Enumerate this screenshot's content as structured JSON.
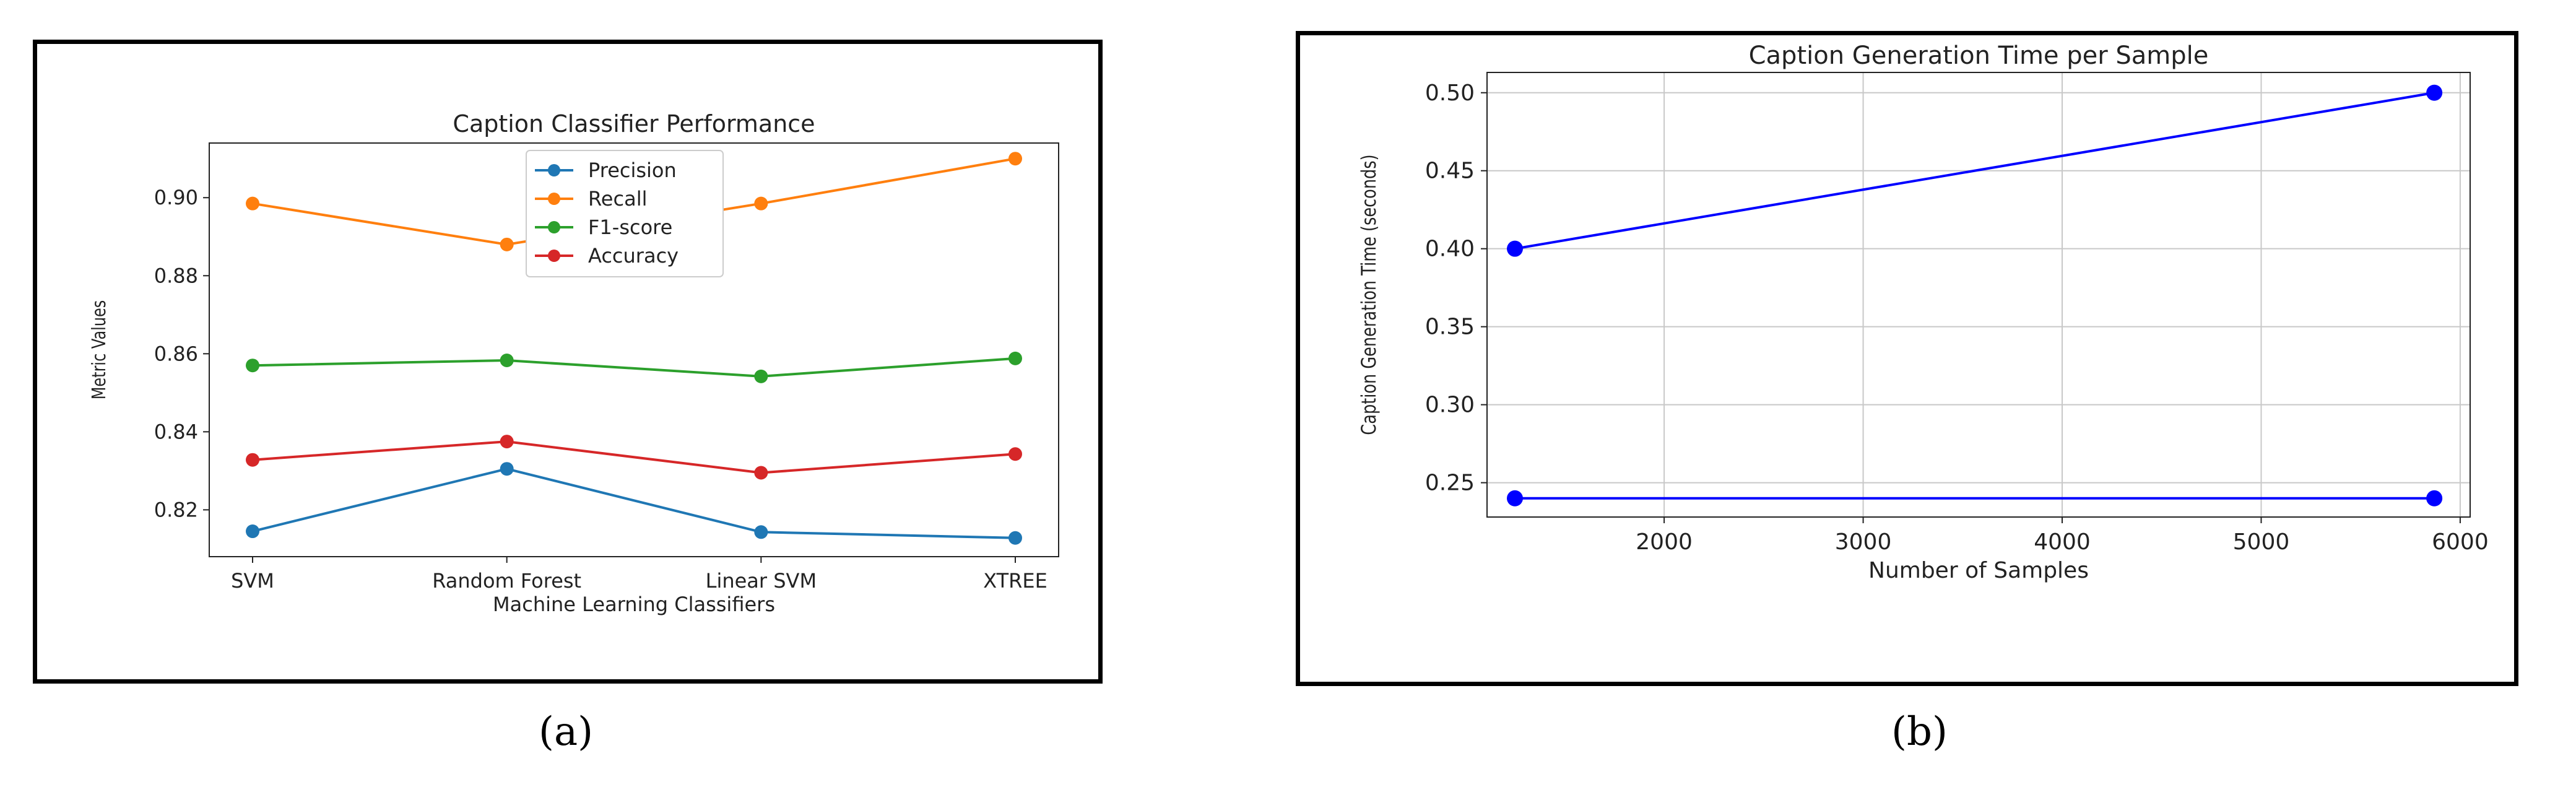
{
  "figure": {
    "label_a": "(a)",
    "label_b": "(b)"
  },
  "chart_data": [
    {
      "type": "line",
      "title": "Caption Classifier Performance",
      "xlabel": "Machine Learning Classifiers",
      "ylabel": "Metric Values",
      "categories": [
        "SVM",
        "Random Forest",
        "Linear SVM",
        "XTREE"
      ],
      "ylim": [
        0.808,
        0.914
      ],
      "yticks": [
        0.82,
        0.84,
        0.86,
        0.88,
        0.9
      ],
      "grid": false,
      "legend": "top-center",
      "series": [
        {
          "name": "Precision",
          "color": "#1f77b4",
          "values": [
            0.8145,
            0.8305,
            0.8143,
            0.8128
          ]
        },
        {
          "name": "Recall",
          "color": "#ff7f0e",
          "values": [
            0.8985,
            0.888,
            0.8985,
            0.91
          ]
        },
        {
          "name": "F1-score",
          "color": "#2ca02c",
          "values": [
            0.857,
            0.8583,
            0.8542,
            0.8588
          ]
        },
        {
          "name": "Accuracy",
          "color": "#d62728",
          "values": [
            0.8328,
            0.8375,
            0.8295,
            0.8343
          ]
        }
      ]
    },
    {
      "type": "line",
      "title": "Caption Generation Time per Sample",
      "xlabel": "Number of Samples",
      "ylabel": "Caption Generation Time (seconds)",
      "xlim": [
        1110,
        6050
      ],
      "ylim": [
        0.228,
        0.513
      ],
      "xticks": [
        2000,
        3000,
        4000,
        5000,
        6000
      ],
      "yticks": [
        0.25,
        0.3,
        0.35,
        0.4,
        0.45,
        0.5
      ],
      "grid": true,
      "series": [
        {
          "color": "#0000ff",
          "x": [
            1250,
            5870
          ],
          "y": [
            0.4,
            0.5
          ]
        },
        {
          "color": "#0000ff",
          "x": [
            1250,
            5870
          ],
          "y": [
            0.24,
            0.24
          ]
        }
      ]
    }
  ]
}
